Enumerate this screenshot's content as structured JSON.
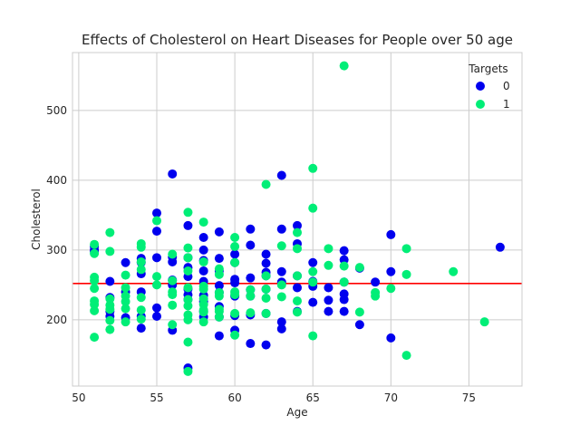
{
  "chart_data": {
    "type": "scatter",
    "title": "Effects of Cholesterol on Heart Diseases for People over 50 age",
    "xlabel": "Age",
    "ylabel": "Cholesterol",
    "xlim": [
      49.6,
      78.4
    ],
    "ylim": [
      105,
      583
    ],
    "xticks": [
      50,
      55,
      60,
      65,
      70,
      75
    ],
    "yticks": [
      200,
      300,
      400,
      500
    ],
    "grid": true,
    "legend": {
      "title": "Targets",
      "placement": "top-right"
    },
    "reference_line": {
      "y": 252,
      "color": "#ff0000"
    },
    "series": [
      {
        "name": "0",
        "color": "#0000ee",
        "points": [
          [
            51,
            305
          ],
          [
            51,
            300
          ],
          [
            51,
            298
          ],
          [
            52,
            255
          ],
          [
            52,
            232
          ],
          [
            52,
            212
          ],
          [
            52,
            205
          ],
          [
            53,
            282
          ],
          [
            53,
            240
          ],
          [
            53,
            203
          ],
          [
            54,
            288
          ],
          [
            54,
            282
          ],
          [
            54,
            266
          ],
          [
            54,
            240
          ],
          [
            54,
            205
          ],
          [
            54,
            188
          ],
          [
            55,
            353
          ],
          [
            55,
            327
          ],
          [
            55,
            289
          ],
          [
            55,
            217
          ],
          [
            55,
            205
          ],
          [
            56,
            409
          ],
          [
            56,
            290
          ],
          [
            56,
            283
          ],
          [
            56,
            257
          ],
          [
            56,
            250
          ],
          [
            56,
            185
          ],
          [
            57,
            335
          ],
          [
            57,
            289
          ],
          [
            57,
            275
          ],
          [
            57,
            262
          ],
          [
            57,
            244
          ],
          [
            57,
            236
          ],
          [
            57,
            229
          ],
          [
            57,
            131
          ],
          [
            58,
            318
          ],
          [
            58,
            300
          ],
          [
            58,
            285
          ],
          [
            58,
            270
          ],
          [
            58,
            255
          ],
          [
            58,
            235
          ],
          [
            58,
            226
          ],
          [
            58,
            212
          ],
          [
            58,
            204
          ],
          [
            59,
            326
          ],
          [
            59,
            288
          ],
          [
            59,
            270
          ],
          [
            59,
            249
          ],
          [
            59,
            239
          ],
          [
            59,
            219
          ],
          [
            59,
            204
          ],
          [
            59,
            177
          ],
          [
            60,
            294
          ],
          [
            60,
            282
          ],
          [
            60,
            258
          ],
          [
            60,
            253
          ],
          [
            60,
            234
          ],
          [
            60,
            206
          ],
          [
            60,
            185
          ],
          [
            61,
            330
          ],
          [
            61,
            307
          ],
          [
            61,
            260
          ],
          [
            61,
            243
          ],
          [
            61,
            234
          ],
          [
            61,
            207
          ],
          [
            61,
            166
          ],
          [
            62,
            294
          ],
          [
            62,
            281
          ],
          [
            62,
            268
          ],
          [
            62,
            263
          ],
          [
            62,
            244
          ],
          [
            62,
            209
          ],
          [
            62,
            164
          ],
          [
            63,
            407
          ],
          [
            63,
            330
          ],
          [
            63,
            269
          ],
          [
            63,
            254
          ],
          [
            63,
            197
          ],
          [
            63,
            187
          ],
          [
            64,
            335
          ],
          [
            64,
            309
          ],
          [
            64,
            263
          ],
          [
            64,
            246
          ],
          [
            64,
            212
          ],
          [
            65,
            282
          ],
          [
            65,
            255
          ],
          [
            65,
            248
          ],
          [
            65,
            225
          ],
          [
            66,
            246
          ],
          [
            66,
            228
          ],
          [
            66,
            212
          ],
          [
            67,
            299
          ],
          [
            67,
            286
          ],
          [
            67,
            254
          ],
          [
            67,
            237
          ],
          [
            67,
            229
          ],
          [
            67,
            212
          ],
          [
            68,
            274
          ],
          [
            68,
            193
          ],
          [
            69,
            254
          ],
          [
            70,
            322
          ],
          [
            70,
            269
          ],
          [
            70,
            174
          ],
          [
            77,
            304
          ]
        ]
      },
      {
        "name": "1",
        "color": "#00ee77",
        "points": [
          [
            51,
            308
          ],
          [
            51,
            295
          ],
          [
            51,
            261
          ],
          [
            51,
            256
          ],
          [
            51,
            245
          ],
          [
            51,
            227
          ],
          [
            51,
            222
          ],
          [
            51,
            213
          ],
          [
            51,
            175
          ],
          [
            52,
            325
          ],
          [
            52,
            298
          ],
          [
            52,
            230
          ],
          [
            52,
            221
          ],
          [
            52,
            215
          ],
          [
            52,
            199
          ],
          [
            52,
            186
          ],
          [
            53,
            264
          ],
          [
            53,
            246
          ],
          [
            53,
            234
          ],
          [
            53,
            226
          ],
          [
            53,
            216
          ],
          [
            53,
            197
          ],
          [
            54,
            309
          ],
          [
            54,
            304
          ],
          [
            54,
            283
          ],
          [
            54,
            272
          ],
          [
            54,
            232
          ],
          [
            54,
            214
          ],
          [
            54,
            201
          ],
          [
            55,
            342
          ],
          [
            55,
            262
          ],
          [
            55,
            250
          ],
          [
            56,
            294
          ],
          [
            56,
            256
          ],
          [
            56,
            240
          ],
          [
            56,
            236
          ],
          [
            56,
            221
          ],
          [
            56,
            193
          ],
          [
            57,
            354
          ],
          [
            57,
            303
          ],
          [
            57,
            289
          ],
          [
            57,
            270
          ],
          [
            57,
            246
          ],
          [
            57,
            229
          ],
          [
            57,
            220
          ],
          [
            57,
            207
          ],
          [
            57,
            200
          ],
          [
            57,
            168
          ],
          [
            57,
            126
          ],
          [
            58,
            340
          ],
          [
            58,
            283
          ],
          [
            58,
            248
          ],
          [
            58,
            244
          ],
          [
            58,
            230
          ],
          [
            58,
            222
          ],
          [
            58,
            214
          ],
          [
            58,
            211
          ],
          [
            58,
            197
          ],
          [
            59,
            273
          ],
          [
            59,
            265
          ],
          [
            59,
            239
          ],
          [
            59,
            234
          ],
          [
            59,
            215
          ],
          [
            59,
            212
          ],
          [
            59,
            204
          ],
          [
            60,
            318
          ],
          [
            60,
            305
          ],
          [
            60,
            282
          ],
          [
            60,
            240
          ],
          [
            60,
            236
          ],
          [
            60,
            209
          ],
          [
            60,
            178
          ],
          [
            61,
            243
          ],
          [
            61,
            234
          ],
          [
            61,
            210
          ],
          [
            62,
            394
          ],
          [
            62,
            263
          ],
          [
            62,
            244
          ],
          [
            62,
            231
          ],
          [
            62,
            209
          ],
          [
            63,
            306
          ],
          [
            63,
            250
          ],
          [
            63,
            233
          ],
          [
            64,
            325
          ],
          [
            64,
            302
          ],
          [
            64,
            263
          ],
          [
            64,
            227
          ],
          [
            64,
            211
          ],
          [
            65,
            417
          ],
          [
            65,
            360
          ],
          [
            65,
            269
          ],
          [
            65,
            254
          ],
          [
            65,
            177
          ],
          [
            66,
            302
          ],
          [
            66,
            278
          ],
          [
            67,
            564
          ],
          [
            67,
            277
          ],
          [
            67,
            254
          ],
          [
            68,
            275
          ],
          [
            68,
            211
          ],
          [
            69,
            239
          ],
          [
            69,
            234
          ],
          [
            70,
            245
          ],
          [
            71,
            302
          ],
          [
            71,
            265
          ],
          [
            71,
            149
          ],
          [
            74,
            269
          ],
          [
            76,
            197
          ]
        ]
      }
    ]
  }
}
